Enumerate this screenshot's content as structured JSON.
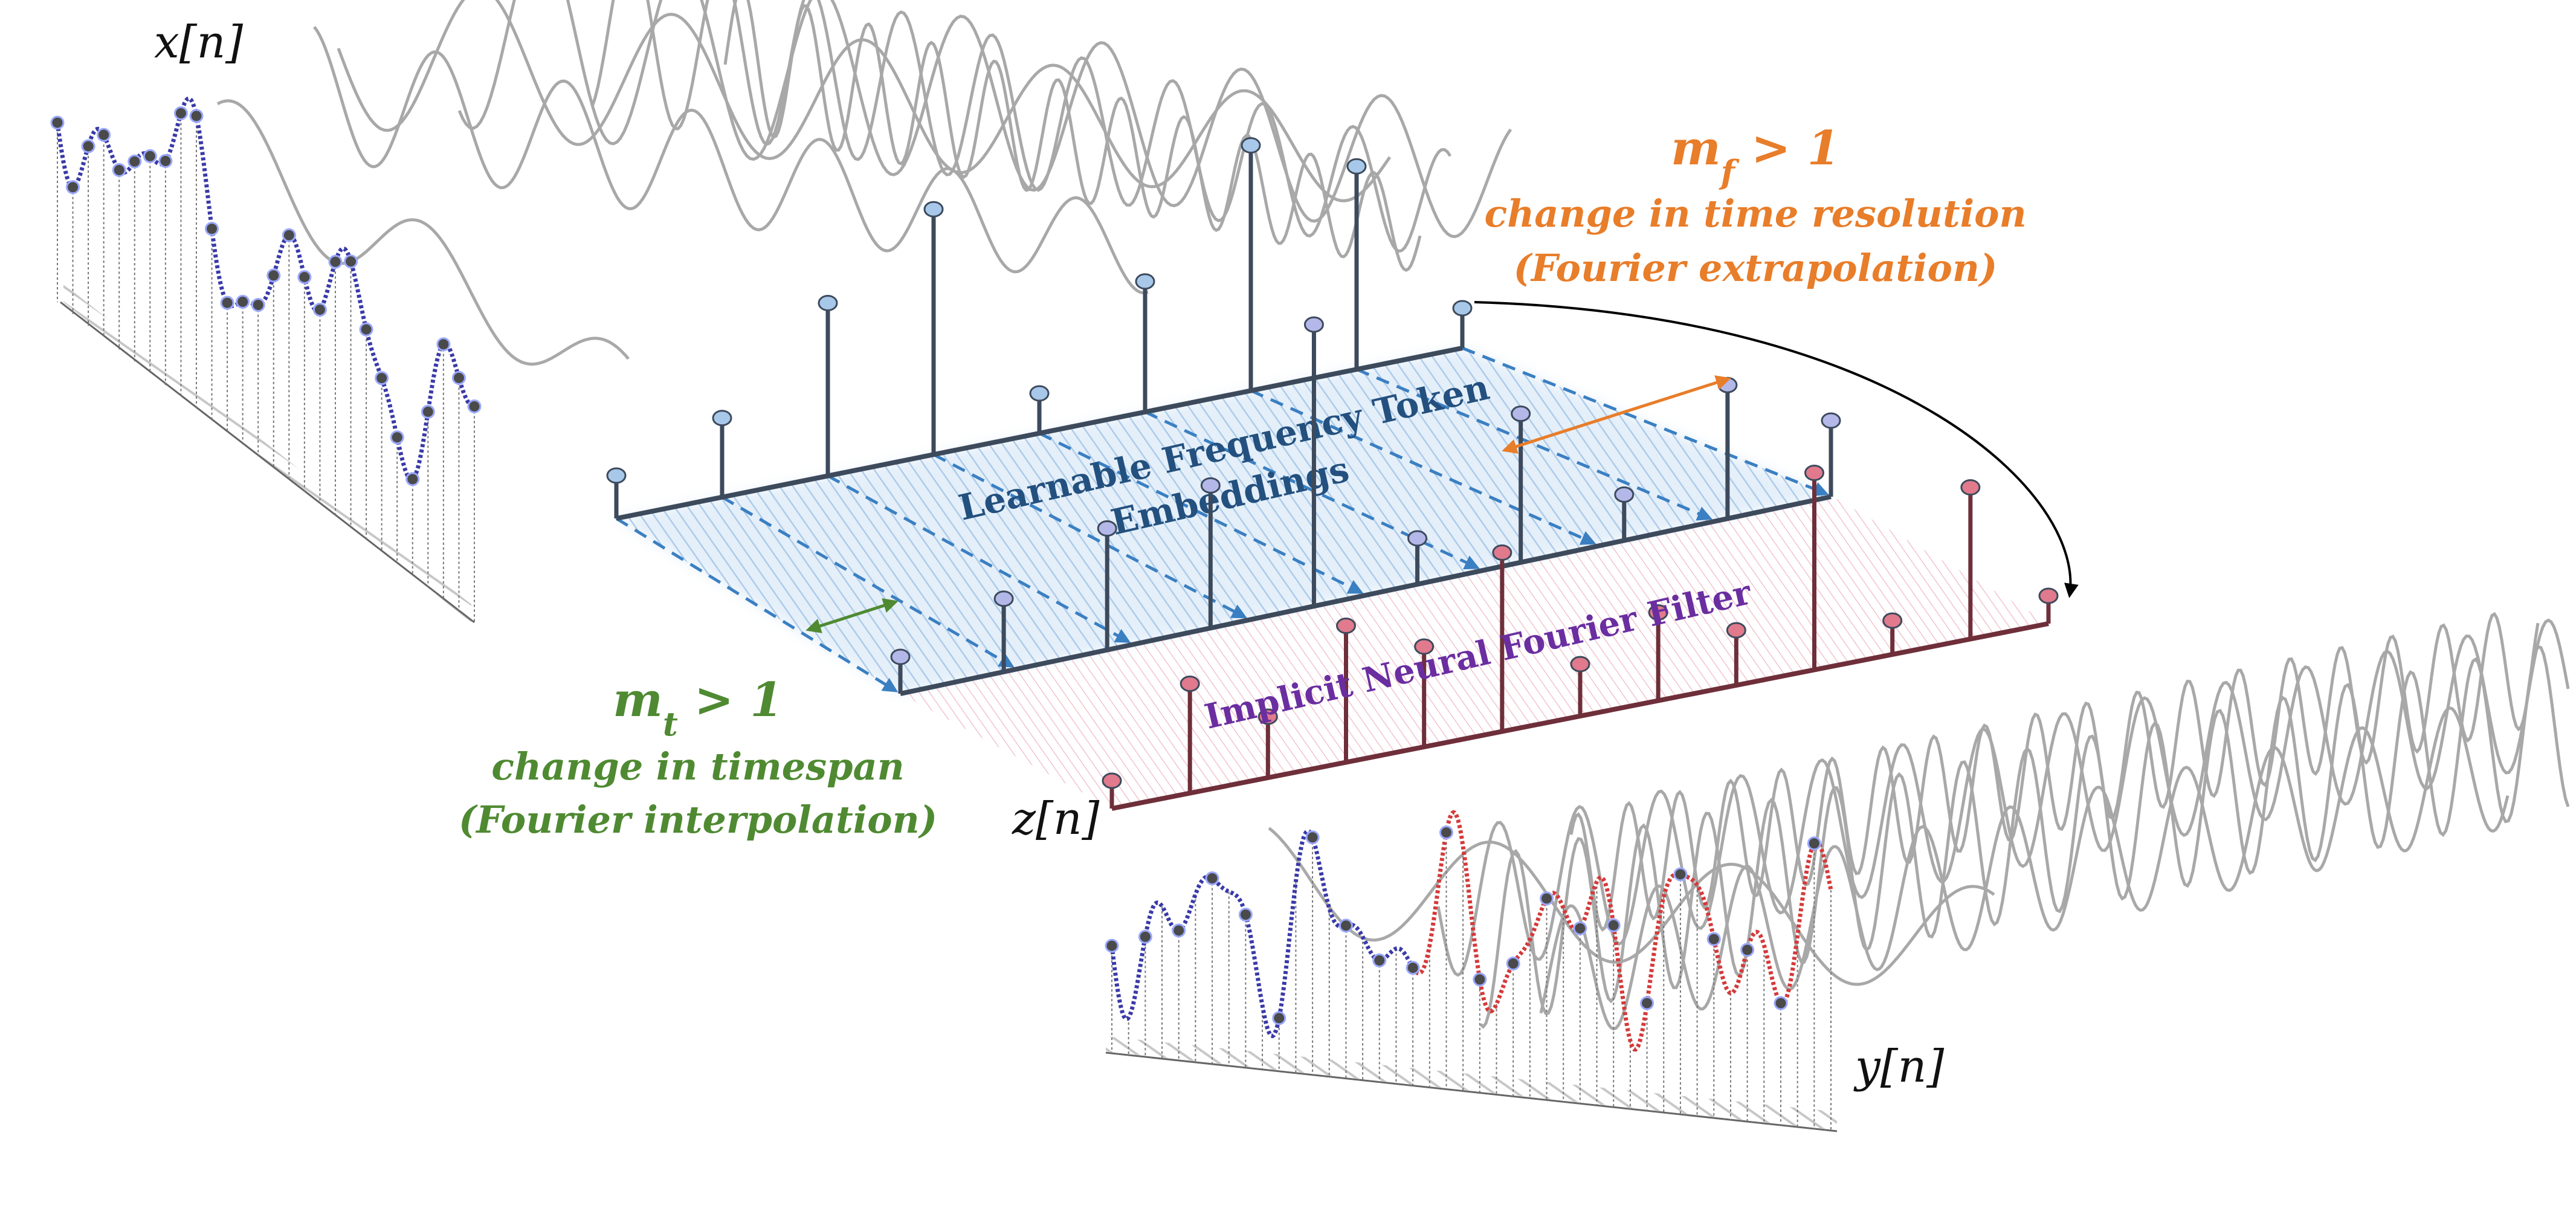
{
  "signals": {
    "input_label": "x[n]",
    "token_label": "z[n]",
    "output_label": "y[n]"
  },
  "planes": {
    "embedding_label_line1": "Learnable Frequency Token",
    "embedding_label_line2": "Embeddings",
    "filter_label": "Implicit Neural Fourier Filter"
  },
  "annotations": {
    "mf_title": "m_f > 1",
    "mf_desc": "change in time resolution",
    "mf_method": "(Fourier extrapolation)",
    "mt_title": "m_t > 1",
    "mt_desc": "change in timespan",
    "mt_method": "(Fourier interpolation)"
  },
  "colors": {
    "input_trace": "#3a3aa8",
    "extrapolated_trace": "#d43a3a",
    "embedding_stem_head": "#a8c8ea",
    "filter_stem_head": "#e07a8c",
    "mf_accent": "#e87d2a",
    "mt_accent": "#4f8a32",
    "filter_accent": "#6a2ea0",
    "embedding_accent": "#23507e",
    "wave_gray": "#9a9a9a",
    "axis_dark": "#3d4a5c"
  }
}
